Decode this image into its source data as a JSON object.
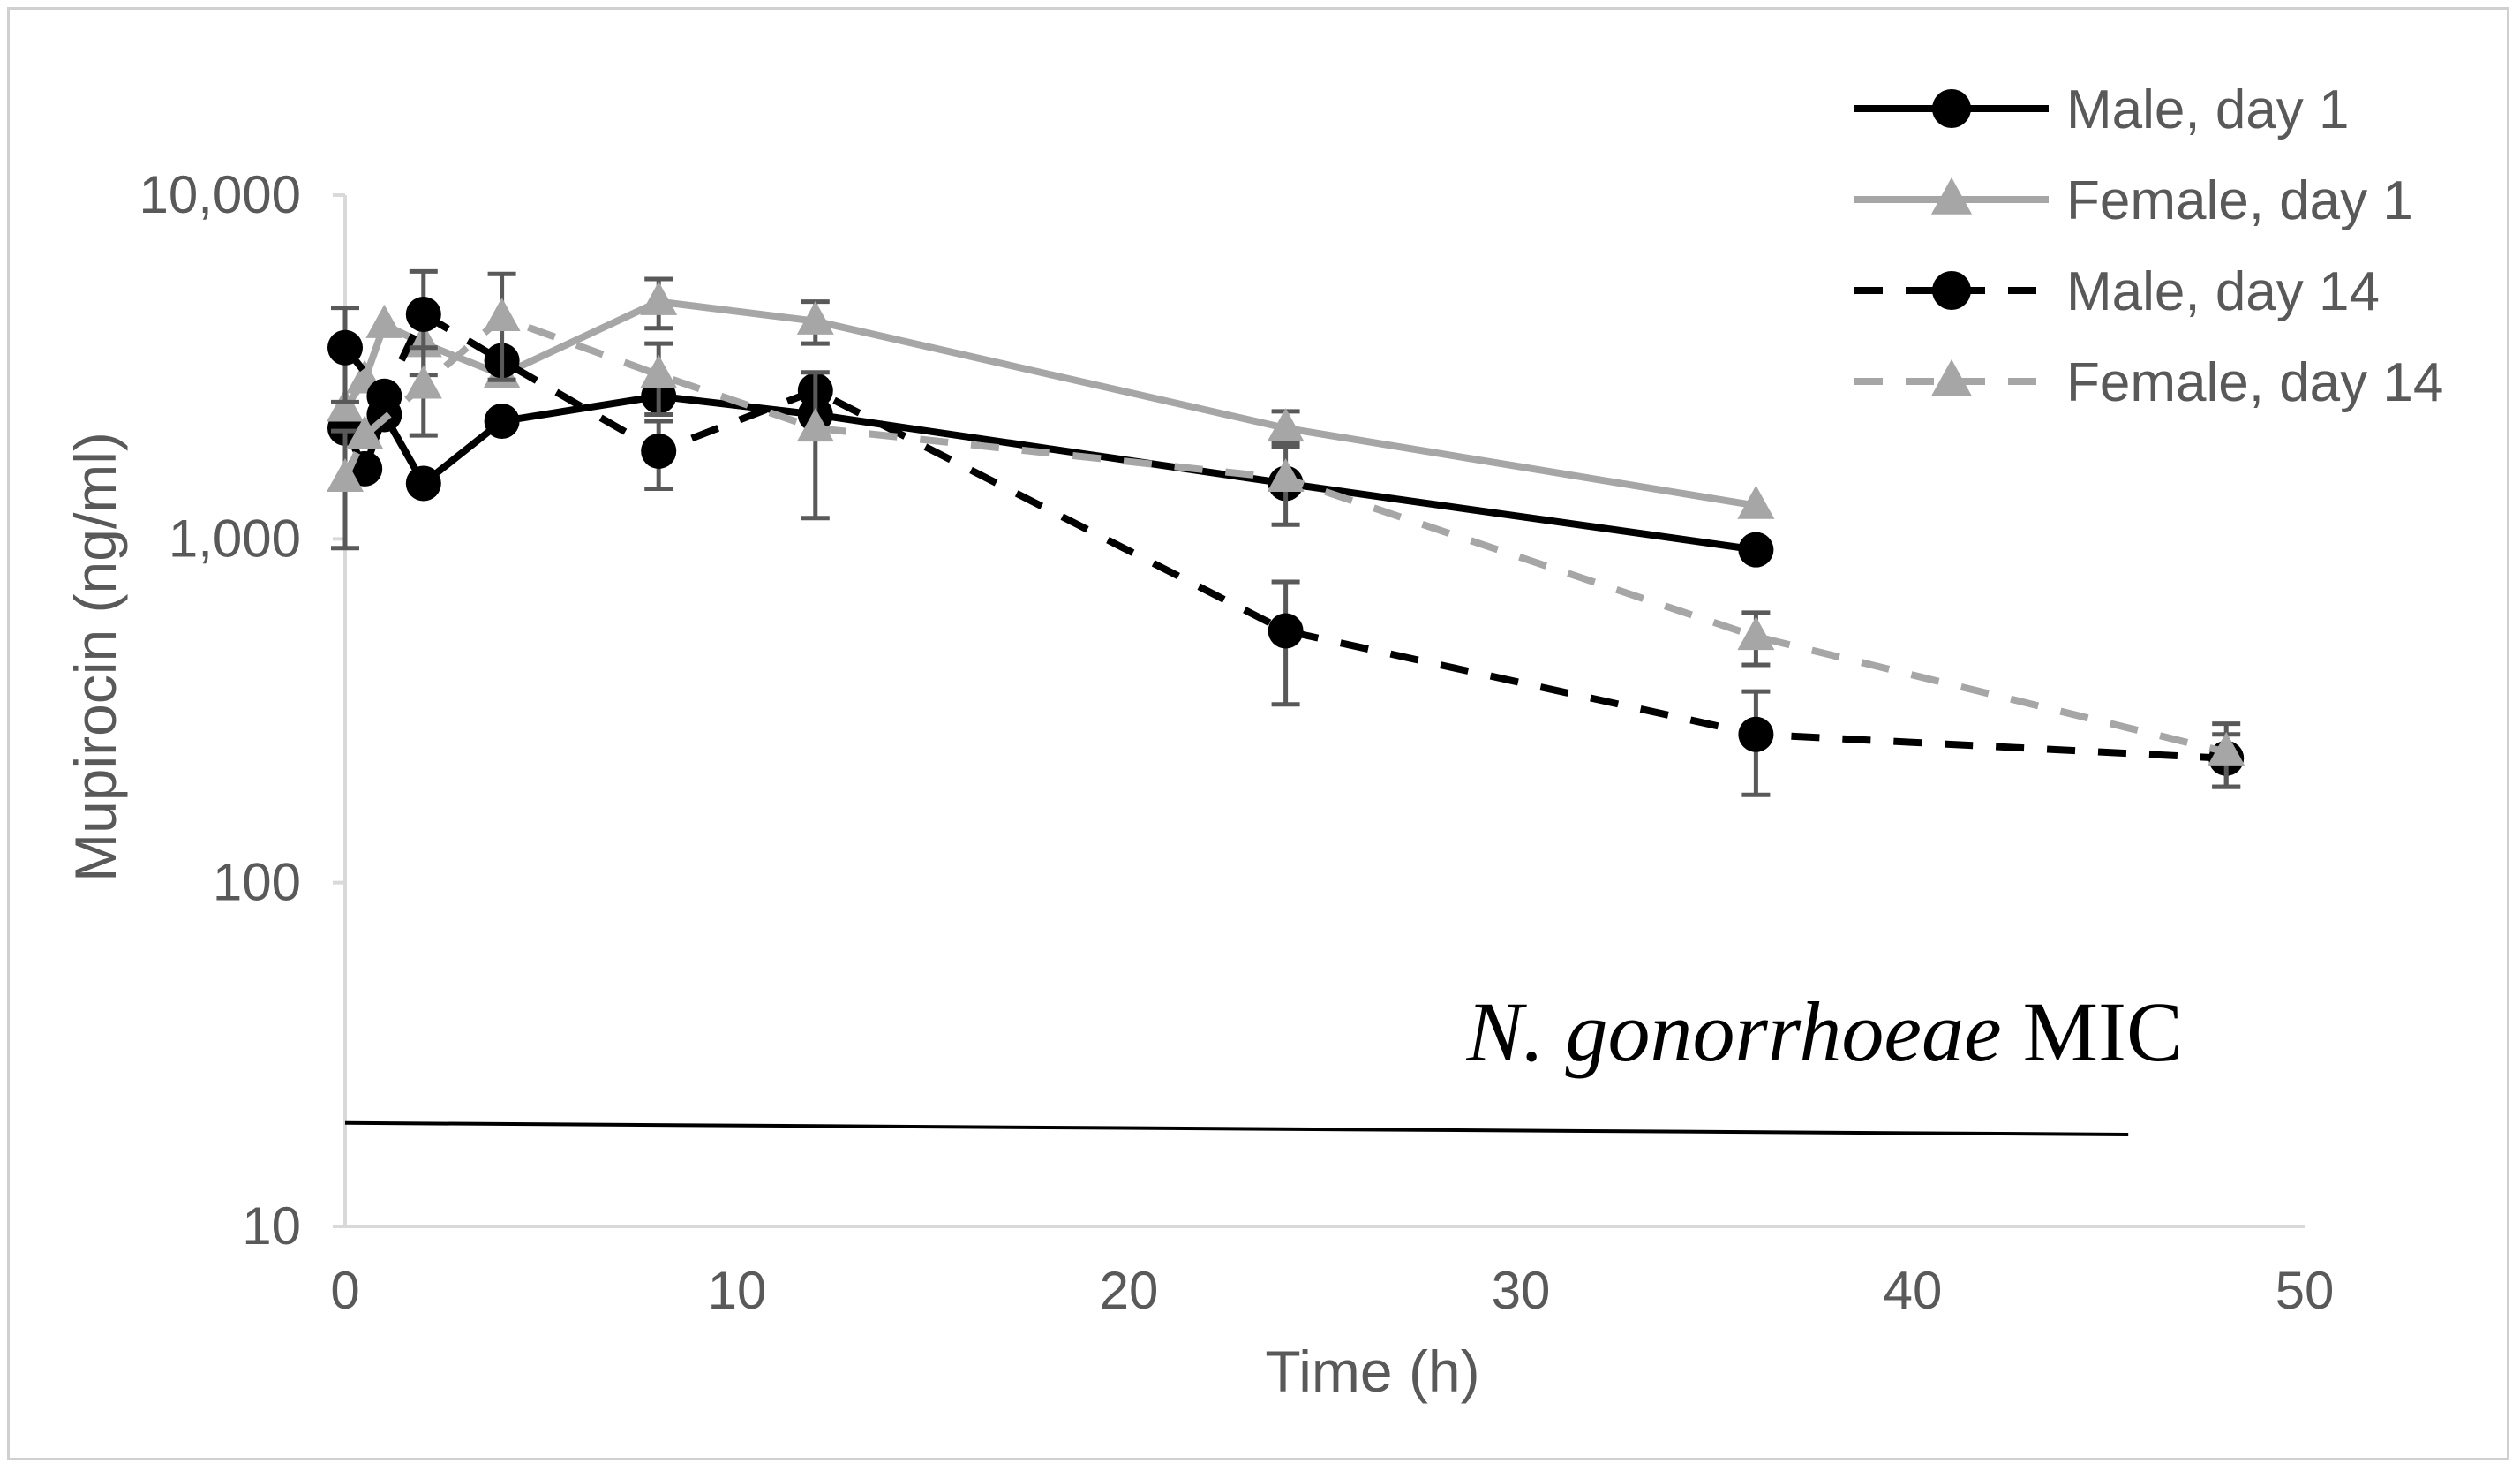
{
  "chart_data": {
    "type": "line",
    "title": "",
    "xlabel": "Time (h)",
    "ylabel": "Mupirocin (ng/ml)",
    "yscale": "log",
    "xlim": [
      0,
      50
    ],
    "ylim": [
      10,
      10000
    ],
    "xticks": [
      "0",
      "10",
      "20",
      "30",
      "40",
      "50"
    ],
    "yticks": [
      {
        "value": 10,
        "label": "10"
      },
      {
        "value": 100,
        "label": "100"
      },
      {
        "value": 1000,
        "label": "1,000"
      },
      {
        "value": 10000,
        "label": "10,000"
      }
    ],
    "grid": false,
    "legend_position": "top-right",
    "series": [
      {
        "name": "Male, day 1",
        "color": "#000000",
        "dashed": false,
        "marker": "circle",
        "x": [
          0,
          0.5,
          1,
          2,
          4,
          8,
          12,
          24,
          36
        ],
        "y": [
          2100,
          1600,
          2300,
          1450,
          2200,
          2600,
          2300,
          1450,
          930
        ],
        "err": [
          0,
          0,
          0,
          0,
          0,
          0,
          0,
          0,
          0
        ]
      },
      {
        "name": "Female, day 1",
        "color": "#a6a6a6",
        "dashed": false,
        "marker": "triangle",
        "x": [
          0,
          0.5,
          1,
          2,
          4,
          8,
          12,
          24,
          36
        ],
        "y": [
          2400,
          2900,
          4200,
          3700,
          3000,
          4900,
          4300,
          2100,
          1250
        ],
        "err": [
          0,
          0,
          0,
          0,
          0,
          800,
          600,
          250,
          0
        ]
      },
      {
        "name": "Male, day 14",
        "color": "#000000",
        "dashed": true,
        "marker": "circle",
        "x": [
          0,
          1,
          2,
          4,
          8,
          12,
          24,
          36,
          48
        ],
        "y": [
          3600,
          2600,
          4500,
          3300,
          1800,
          2700,
          540,
          270,
          230
        ],
        "err": [
          1100,
          0,
          1500,
          0,
          400,
          0,
          210,
          90,
          40
        ]
      },
      {
        "name": "Female, day 14",
        "color": "#a6a6a6",
        "dashed": true,
        "marker": "triangle",
        "x": [
          0,
          0.5,
          2,
          4,
          8,
          12,
          24,
          36,
          48
        ],
        "y": [
          1500,
          2000,
          2800,
          4400,
          3000,
          2100,
          1500,
          520,
          240
        ],
        "err": [
          560,
          0,
          800,
          1500,
          700,
          950,
          400,
          90,
          50
        ]
      }
    ],
    "reference_line": {
      "x": [
        0,
        45.5
      ],
      "y": [
        20,
        18.5
      ],
      "color": "#000000"
    },
    "annotation": {
      "italic_part": "N. gonorrhoeae",
      "plain_part": " MIC"
    }
  }
}
